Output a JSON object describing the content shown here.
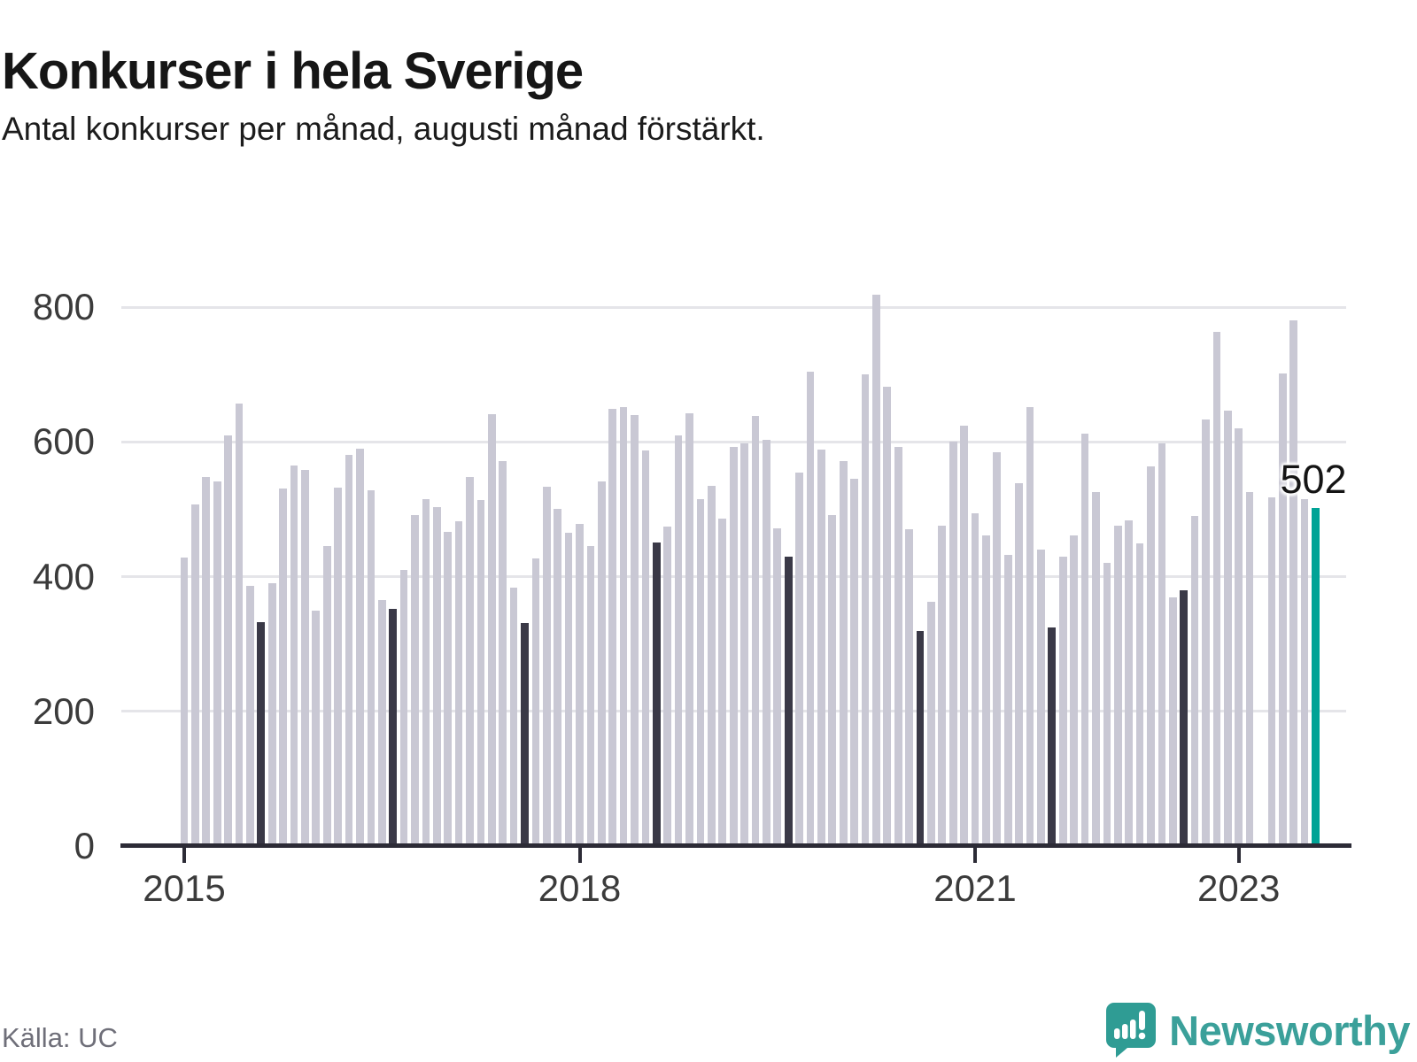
{
  "header": {
    "title": "Konkurser i hela Sverige",
    "subtitle": "Antal konkurser per månad, augusti månad förstärkt."
  },
  "annotation": {
    "last_value_label": "502"
  },
  "footer": {
    "source": "Källa: UC",
    "brand": "Newsworthy"
  },
  "colors": {
    "bar": "#c9c8d4",
    "august_bar": "#3a3947",
    "highlight_bar": "#00a396",
    "axis": "#2c2b36",
    "grid": "#e5e5e9",
    "tick_label": "#3b3b3b",
    "source_text": "#6f6f79",
    "brand_teal": "#3ba09a",
    "logo_teal": "#2f9c94"
  },
  "chart_data": {
    "type": "bar",
    "title": "Konkurser i hela Sverige",
    "subtitle": "Antal konkurser per månad, augusti månad förstärkt.",
    "xlabel": "",
    "ylabel": "",
    "ylim": [
      0,
      860
    ],
    "y_ticks": [
      0,
      200,
      400,
      600,
      800
    ],
    "grid": true,
    "legend": "none",
    "note": "August bars rendered dark; August 2023 rendered teal with data label; March 2023 has no bar in source image.",
    "x_ticks": [
      {
        "label": "2015",
        "month_index": 0
      },
      {
        "label": "2018",
        "month_index": 36
      },
      {
        "label": "2021",
        "month_index": 72
      },
      {
        "label": "2023",
        "month_index": 96
      }
    ],
    "series": [
      {
        "m": "2015-01",
        "v": 428
      },
      {
        "m": "2015-02",
        "v": 507
      },
      {
        "m": "2015-03",
        "v": 548
      },
      {
        "m": "2015-04",
        "v": 541
      },
      {
        "m": "2015-05",
        "v": 610
      },
      {
        "m": "2015-06",
        "v": 657
      },
      {
        "m": "2015-07",
        "v": 386
      },
      {
        "m": "2015-08",
        "v": 333
      },
      {
        "m": "2015-09",
        "v": 390
      },
      {
        "m": "2015-10",
        "v": 531
      },
      {
        "m": "2015-11",
        "v": 565
      },
      {
        "m": "2015-12",
        "v": 559
      },
      {
        "m": "2016-01",
        "v": 349
      },
      {
        "m": "2016-02",
        "v": 446
      },
      {
        "m": "2016-03",
        "v": 532
      },
      {
        "m": "2016-04",
        "v": 581
      },
      {
        "m": "2016-05",
        "v": 590
      },
      {
        "m": "2016-06",
        "v": 528
      },
      {
        "m": "2016-07",
        "v": 365
      },
      {
        "m": "2016-08",
        "v": 352
      },
      {
        "m": "2016-09",
        "v": 410
      },
      {
        "m": "2016-10",
        "v": 492
      },
      {
        "m": "2016-11",
        "v": 515
      },
      {
        "m": "2016-12",
        "v": 503
      },
      {
        "m": "2017-01",
        "v": 466
      },
      {
        "m": "2017-02",
        "v": 482
      },
      {
        "m": "2017-03",
        "v": 548
      },
      {
        "m": "2017-04",
        "v": 514
      },
      {
        "m": "2017-05",
        "v": 641
      },
      {
        "m": "2017-06",
        "v": 572
      },
      {
        "m": "2017-07",
        "v": 384
      },
      {
        "m": "2017-08",
        "v": 331
      },
      {
        "m": "2017-09",
        "v": 427
      },
      {
        "m": "2017-10",
        "v": 533
      },
      {
        "m": "2017-11",
        "v": 500
      },
      {
        "m": "2017-12",
        "v": 465
      },
      {
        "m": "2018-01",
        "v": 478
      },
      {
        "m": "2018-02",
        "v": 445
      },
      {
        "m": "2018-03",
        "v": 541
      },
      {
        "m": "2018-04",
        "v": 649
      },
      {
        "m": "2018-05",
        "v": 652
      },
      {
        "m": "2018-06",
        "v": 640
      },
      {
        "m": "2018-07",
        "v": 587
      },
      {
        "m": "2018-08",
        "v": 451
      },
      {
        "m": "2018-09",
        "v": 474
      },
      {
        "m": "2018-10",
        "v": 610
      },
      {
        "m": "2018-11",
        "v": 643
      },
      {
        "m": "2018-12",
        "v": 515
      },
      {
        "m": "2019-01",
        "v": 535
      },
      {
        "m": "2019-02",
        "v": 486
      },
      {
        "m": "2019-03",
        "v": 592
      },
      {
        "m": "2019-04",
        "v": 598
      },
      {
        "m": "2019-05",
        "v": 638
      },
      {
        "m": "2019-06",
        "v": 603
      },
      {
        "m": "2019-07",
        "v": 472
      },
      {
        "m": "2019-08",
        "v": 429
      },
      {
        "m": "2019-09",
        "v": 555
      },
      {
        "m": "2019-10",
        "v": 704
      },
      {
        "m": "2019-11",
        "v": 589
      },
      {
        "m": "2019-12",
        "v": 491
      },
      {
        "m": "2020-01",
        "v": 571
      },
      {
        "m": "2020-02",
        "v": 545
      },
      {
        "m": "2020-03",
        "v": 700
      },
      {
        "m": "2020-04",
        "v": 818
      },
      {
        "m": "2020-05",
        "v": 682
      },
      {
        "m": "2020-06",
        "v": 593
      },
      {
        "m": "2020-07",
        "v": 471
      },
      {
        "m": "2020-08",
        "v": 319
      },
      {
        "m": "2020-09",
        "v": 363
      },
      {
        "m": "2020-10",
        "v": 475
      },
      {
        "m": "2020-11",
        "v": 600
      },
      {
        "m": "2020-12",
        "v": 624
      },
      {
        "m": "2021-01",
        "v": 494
      },
      {
        "m": "2021-02",
        "v": 461
      },
      {
        "m": "2021-03",
        "v": 585
      },
      {
        "m": "2021-04",
        "v": 432
      },
      {
        "m": "2021-05",
        "v": 539
      },
      {
        "m": "2021-06",
        "v": 651
      },
      {
        "m": "2021-07",
        "v": 440
      },
      {
        "m": "2021-08",
        "v": 325
      },
      {
        "m": "2021-09",
        "v": 430
      },
      {
        "m": "2021-10",
        "v": 461
      },
      {
        "m": "2021-11",
        "v": 612
      },
      {
        "m": "2021-12",
        "v": 525
      },
      {
        "m": "2022-01",
        "v": 420
      },
      {
        "m": "2022-02",
        "v": 475
      },
      {
        "m": "2022-03",
        "v": 484
      },
      {
        "m": "2022-04",
        "v": 449
      },
      {
        "m": "2022-05",
        "v": 563
      },
      {
        "m": "2022-06",
        "v": 598
      },
      {
        "m": "2022-07",
        "v": 369
      },
      {
        "m": "2022-08",
        "v": 380
      },
      {
        "m": "2022-09",
        "v": 490
      },
      {
        "m": "2022-10",
        "v": 633
      },
      {
        "m": "2022-11",
        "v": 763
      },
      {
        "m": "2022-12",
        "v": 647
      },
      {
        "m": "2023-01",
        "v": 620
      },
      {
        "m": "2023-02",
        "v": 526
      },
      {
        "m": "2023-03",
        "v": null
      },
      {
        "m": "2023-04",
        "v": 517
      },
      {
        "m": "2023-05",
        "v": 701
      },
      {
        "m": "2023-06",
        "v": 780
      },
      {
        "m": "2023-07",
        "v": 515
      },
      {
        "m": "2023-08",
        "v": 502
      }
    ]
  }
}
